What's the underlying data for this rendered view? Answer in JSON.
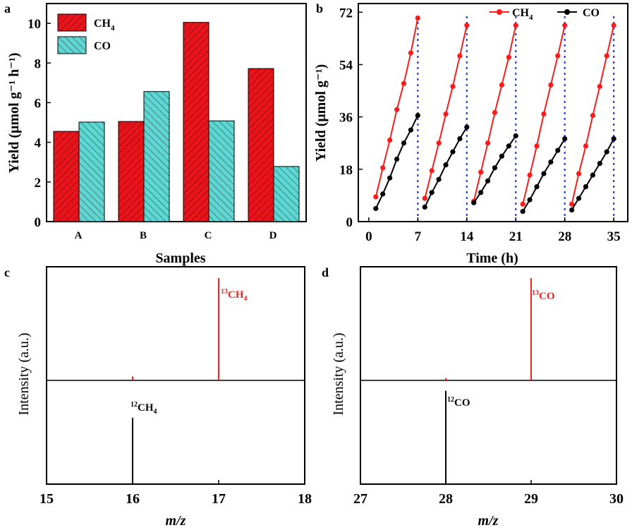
{
  "colors": {
    "ch4": "#e8141b",
    "co": "#5fd6d2",
    "black": "#000000",
    "red": "#ff1a1a",
    "blue": "#1f3bff"
  },
  "chart_data": [
    {
      "panel": "a",
      "type": "bar",
      "xlabel": "Samples",
      "ylabel": "Yield (μmol g⁻¹ h⁻¹)",
      "categories": [
        "A",
        "B",
        "C",
        "D"
      ],
      "ylim": [
        0,
        11
      ],
      "yticks": [
        "0",
        "2",
        "4",
        "6",
        "8",
        "10"
      ],
      "legend_placement": "top-left",
      "series": [
        {
          "name": "CH4",
          "name_main": "CH",
          "name_sub": "4",
          "values": [
            4.55,
            5.05,
            10.05,
            7.72
          ]
        },
        {
          "name": "CO",
          "name_main": "CO",
          "name_sub": "",
          "values": [
            5.02,
            6.56,
            5.08,
            2.78
          ]
        }
      ]
    },
    {
      "panel": "b",
      "type": "line",
      "xlabel": "Time (h)",
      "ylabel": "Yield (μmol g⁻¹)",
      "xlim": [
        -1.5,
        37
      ],
      "ylim": [
        0,
        75
      ],
      "xticks": [
        "0",
        "7",
        "14",
        "21",
        "28",
        "35"
      ],
      "yticks": [
        "0",
        "18",
        "36",
        "54",
        "72"
      ],
      "cycle_lines": [
        7,
        14,
        21,
        28,
        35
      ],
      "legend_placement": "top-right",
      "series": [
        {
          "name": "CH4",
          "name_main": "CH",
          "name_sub": "4",
          "cycles": [
            {
              "x": [
                1,
                2,
                3,
                4,
                5,
                6,
                7
              ],
              "y": [
                8.5,
                18.5,
                28,
                38.5,
                47.5,
                58,
                70
              ]
            },
            {
              "x": [
                8,
                9,
                10,
                11,
                12,
                13,
                14
              ],
              "y": [
                8,
                17.5,
                27,
                37,
                46.5,
                57,
                67.5
              ]
            },
            {
              "x": [
                15,
                16,
                17,
                18,
                19,
                20,
                21
              ],
              "y": [
                7,
                17,
                27,
                37.5,
                47,
                56.5,
                67.5
              ]
            },
            {
              "x": [
                22,
                23,
                24,
                25,
                26,
                27,
                28
              ],
              "y": [
                6,
                16,
                26,
                37,
                47,
                57,
                67.5
              ]
            },
            {
              "x": [
                29,
                30,
                31,
                32,
                33,
                34,
                35
              ],
              "y": [
                6,
                16.5,
                26,
                36.5,
                46.5,
                57,
                67.5
              ]
            }
          ]
        },
        {
          "name": "CO",
          "name_main": "CO",
          "name_sub": "",
          "cycles": [
            {
              "x": [
                1,
                2,
                3,
                4,
                5,
                6,
                7
              ],
              "y": [
                4.5,
                9.5,
                15,
                21.5,
                27,
                31.5,
                36.5
              ]
            },
            {
              "x": [
                8,
                9,
                10,
                11,
                12,
                13,
                14
              ],
              "y": [
                5,
                10,
                14.5,
                19.5,
                24,
                28.5,
                32.5
              ]
            },
            {
              "x": [
                15,
                16,
                17,
                18,
                19,
                20,
                21
              ],
              "y": [
                6.5,
                10,
                14,
                18.5,
                22.5,
                26,
                29.5
              ]
            },
            {
              "x": [
                22,
                23,
                24,
                25,
                26,
                27,
                28
              ],
              "y": [
                3.5,
                7.5,
                12,
                16.5,
                20.5,
                24.5,
                28.5
              ]
            },
            {
              "x": [
                29,
                30,
                31,
                32,
                33,
                34,
                35
              ],
              "y": [
                4,
                8,
                12,
                16,
                20,
                24,
                28.5
              ]
            }
          ]
        }
      ]
    },
    {
      "panel": "c",
      "type": "bar",
      "xlabel": "m/z",
      "ylabel": "Intensity (a.u.)",
      "xlim": [
        15,
        18
      ],
      "xticks": [
        "15",
        "16",
        "17",
        "18"
      ],
      "grid": false,
      "series": [
        {
          "name": "13CH4",
          "label_sup": "13",
          "label_main": "CH",
          "label_sub": "4",
          "color": "red",
          "peaks": [
            {
              "x": 16,
              "h": 0.035
            },
            {
              "x": 17,
              "h": 0.9
            }
          ]
        },
        {
          "name": "12CH4",
          "label_sup": "12",
          "label_main": "CH",
          "label_sub": "4",
          "color": "black",
          "peaks": [
            {
              "x": 16,
              "h": 0.64
            }
          ]
        }
      ]
    },
    {
      "panel": "d",
      "type": "bar",
      "xlabel": "m/z",
      "ylabel": "Intensity (a.u.)",
      "xlim": [
        27,
        30
      ],
      "xticks": [
        "27",
        "28",
        "29",
        "30"
      ],
      "grid": false,
      "series": [
        {
          "name": "13CO",
          "label_sup": "13",
          "label_main": "CO",
          "label_sub": "",
          "color": "red",
          "peaks": [
            {
              "x": 28,
              "h": 0.02
            },
            {
              "x": 29,
              "h": 0.9
            }
          ]
        },
        {
          "name": "12CO",
          "label_sup": "12",
          "label_main": "CO",
          "label_sub": "",
          "color": "black",
          "peaks": [
            {
              "x": 28,
              "h": 0.9
            }
          ]
        }
      ]
    }
  ]
}
